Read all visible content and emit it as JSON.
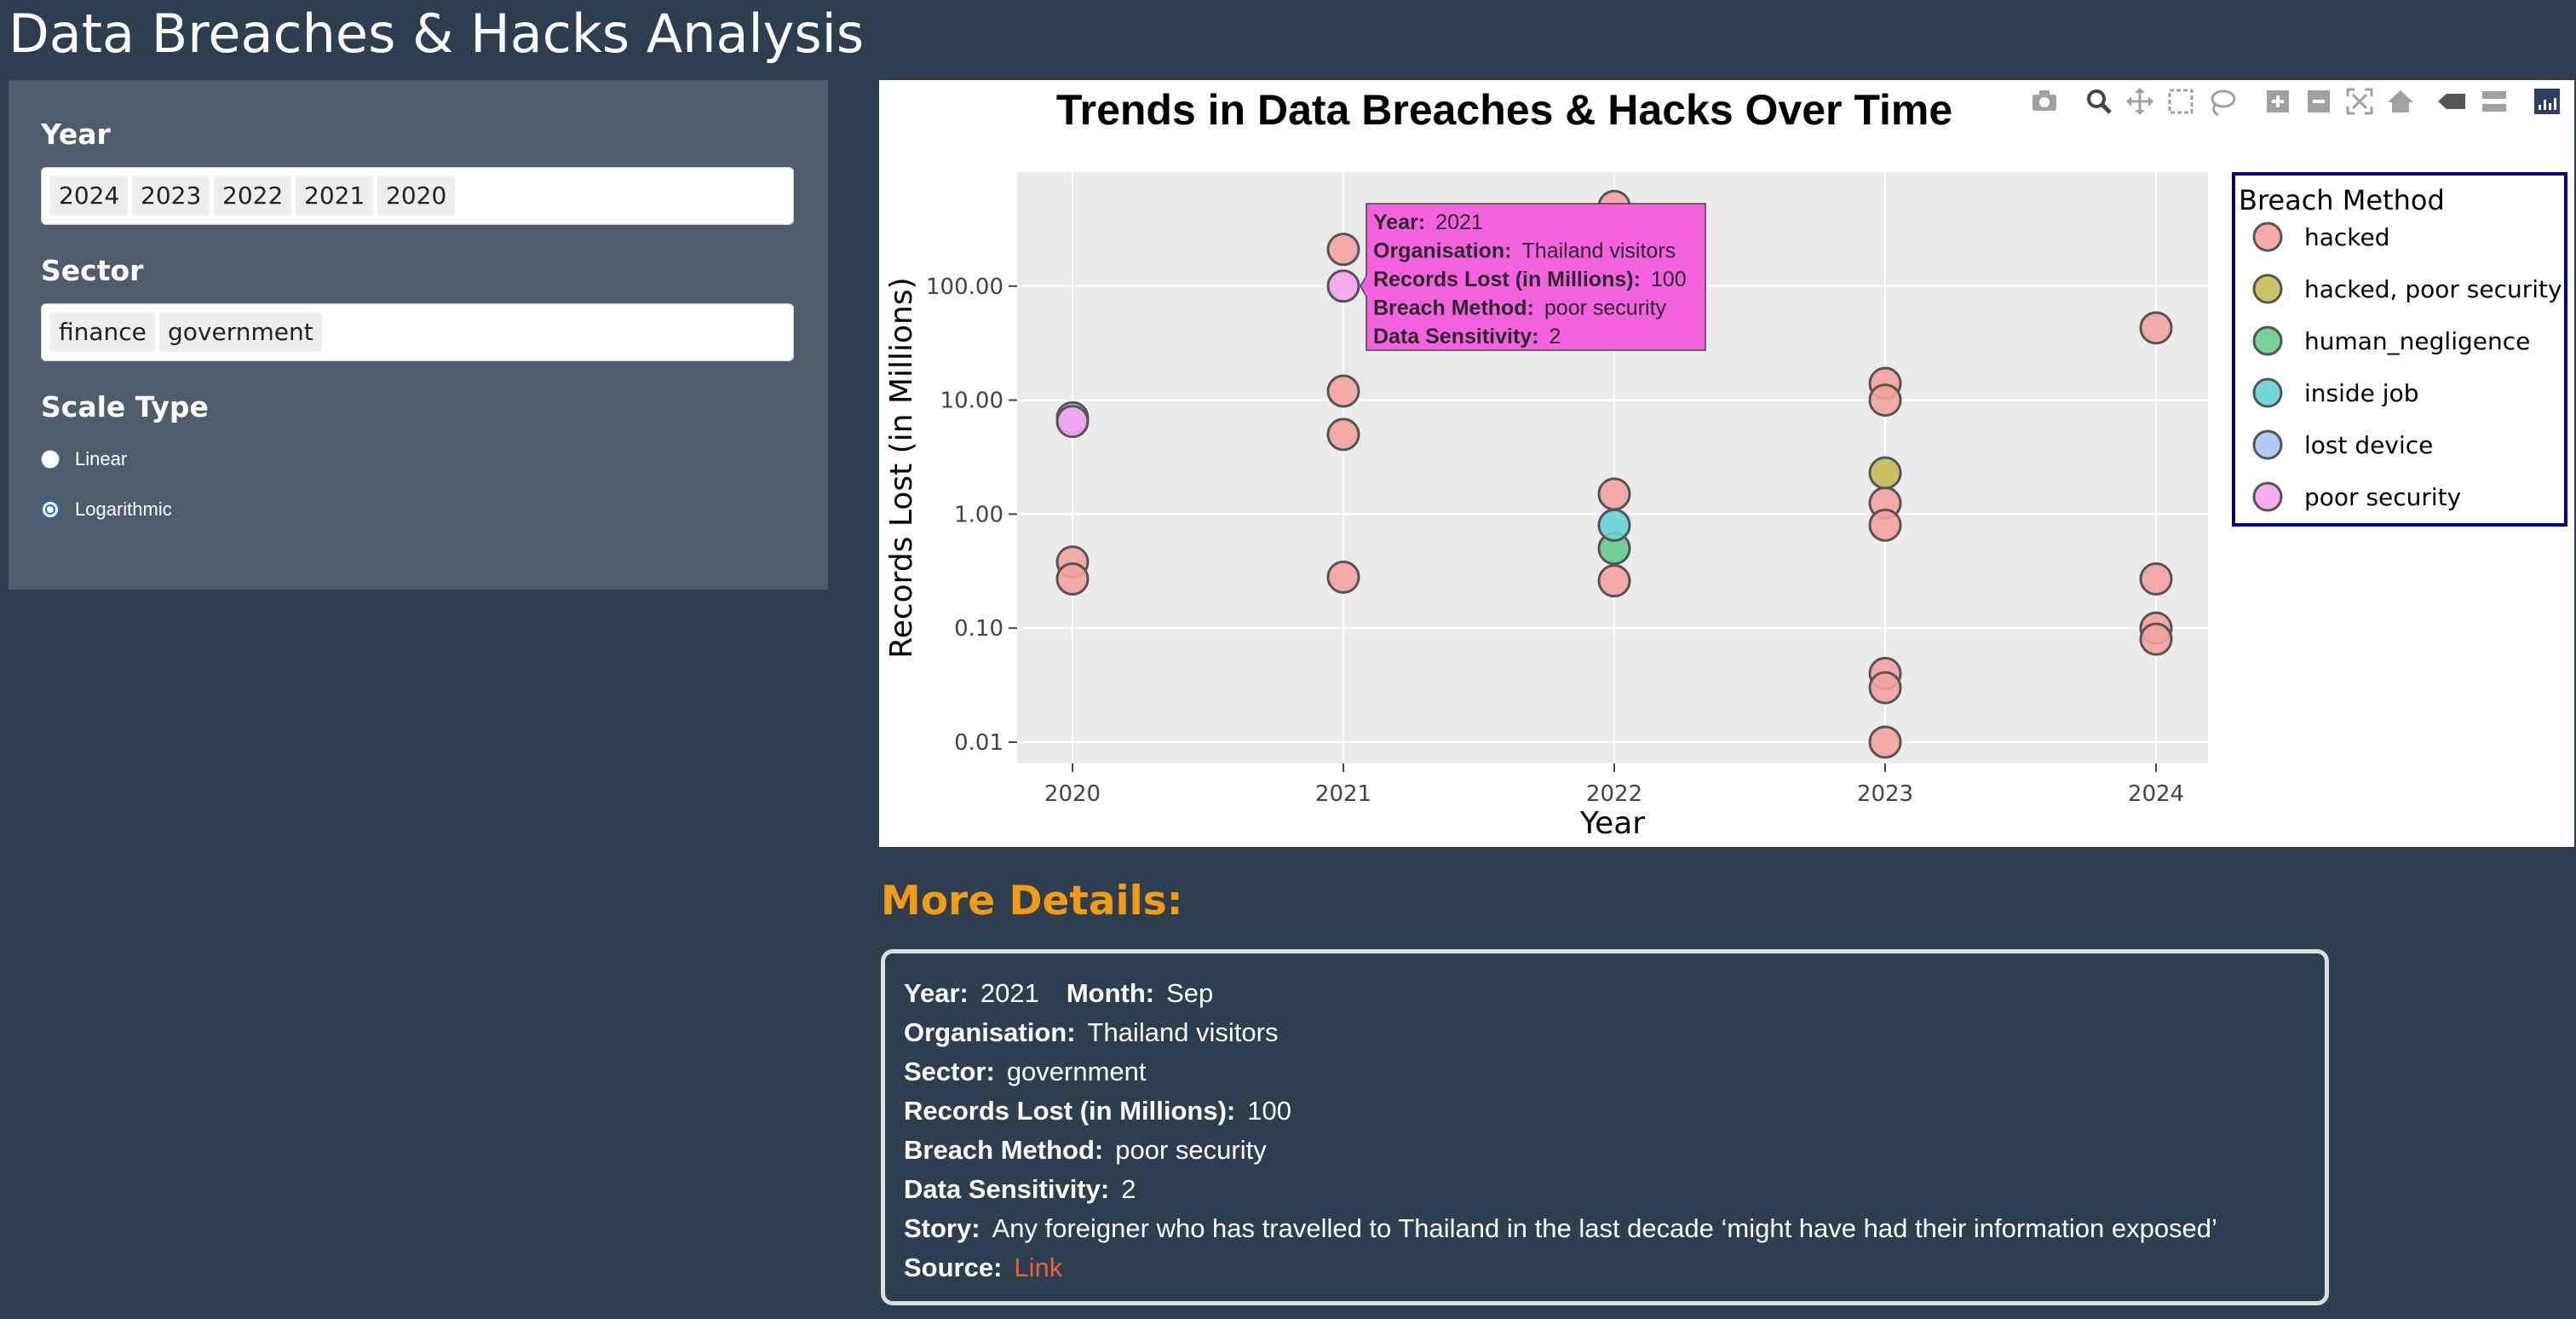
{
  "page": {
    "title": "Data Breaches & Hacks Analysis"
  },
  "filters": {
    "year": {
      "label": "Year",
      "selected": [
        "2024",
        "2023",
        "2022",
        "2021",
        "2020"
      ]
    },
    "sector": {
      "label": "Sector",
      "selected": [
        "finance",
        "government"
      ]
    },
    "scale": {
      "label": "Scale Type",
      "options": [
        {
          "label": "Linear",
          "checked": false
        },
        {
          "label": "Logarithmic",
          "checked": true
        }
      ]
    }
  },
  "modebar": {
    "icons": [
      "camera-icon",
      "zoom-icon",
      "pan-icon",
      "box-select-icon",
      "lasso-select-icon",
      "zoom-in-icon",
      "zoom-out-icon",
      "autoscale-icon",
      "reset-axes-icon",
      "hover-closest-icon",
      "hover-compare-icon",
      "plotly-logo-icon"
    ]
  },
  "chart_data": {
    "type": "scatter",
    "title": "Trends in Data Breaches & Hacks Over Time",
    "xlabel": "Year",
    "ylabel": "Records Lost (in Millions)",
    "x_categories": [
      "2020",
      "2021",
      "2022",
      "2023",
      "2024"
    ],
    "yscale": "log",
    "ylim": [
      0.0065,
      1000
    ],
    "y_ticks": [
      0.01,
      0.1,
      1,
      10,
      100
    ],
    "y_tick_labels": [
      "0.01",
      "0.10",
      "1.00",
      "10.00",
      "100.00"
    ],
    "grid": true,
    "plot_background": "#ebebeb",
    "legend": {
      "title": "Breach Method",
      "placement": "right",
      "border_color": "#000080",
      "entries": [
        {
          "name": "hacked",
          "color": "#f4a3a0"
        },
        {
          "name": "hacked, poor security",
          "color": "#c9bb55"
        },
        {
          "name": "human_negligence",
          "color": "#66cc8a"
        },
        {
          "name": "inside job",
          "color": "#66d4d4"
        },
        {
          "name": "lost device",
          "color": "#a9c4f5"
        },
        {
          "name": "poor security",
          "color": "#f4a3f0"
        }
      ]
    },
    "series": [
      {
        "name": "hacked",
        "points": [
          {
            "x": "2020",
            "y": 0.38
          },
          {
            "x": "2020",
            "y": 0.27
          },
          {
            "x": "2021",
            "y": 210
          },
          {
            "x": "2021",
            "y": 12
          },
          {
            "x": "2021",
            "y": 5
          },
          {
            "x": "2021",
            "y": 0.28
          },
          {
            "x": "2022",
            "y": 500
          },
          {
            "x": "2022",
            "y": 1.5
          },
          {
            "x": "2022",
            "y": 0.26
          },
          {
            "x": "2023",
            "y": 14
          },
          {
            "x": "2023",
            "y": 10
          },
          {
            "x": "2023",
            "y": 1.25
          },
          {
            "x": "2023",
            "y": 0.8
          },
          {
            "x": "2023",
            "y": 0.04
          },
          {
            "x": "2023",
            "y": 0.03
          },
          {
            "x": "2023",
            "y": 0.01
          },
          {
            "x": "2024",
            "y": 43
          },
          {
            "x": "2024",
            "y": 0.27
          },
          {
            "x": "2024",
            "y": 0.1
          },
          {
            "x": "2024",
            "y": 0.08
          }
        ]
      },
      {
        "name": "hacked, poor security",
        "points": [
          {
            "x": "2023",
            "y": 2.3
          }
        ]
      },
      {
        "name": "human_negligence",
        "points": [
          {
            "x": "2022",
            "y": 0.5
          }
        ]
      },
      {
        "name": "inside job",
        "points": [
          {
            "x": "2022",
            "y": 0.8
          }
        ]
      },
      {
        "name": "lost device",
        "points": [
          {
            "x": "2020",
            "y": 7
          }
        ]
      },
      {
        "name": "poor security",
        "points": [
          {
            "x": "2020",
            "y": 6.5
          },
          {
            "x": "2021",
            "y": 100
          }
        ]
      }
    ],
    "hover": {
      "anchor": {
        "series": "poor security",
        "x": "2021",
        "y": 100
      },
      "background": "#f462e0",
      "lines": [
        {
          "key": "Year:",
          "value": "2021"
        },
        {
          "key": "Organisation:",
          "value": "Thailand visitors"
        },
        {
          "key": "Records Lost (in Millions):",
          "value": "100"
        },
        {
          "key": "Breach Method:",
          "value": "poor security"
        },
        {
          "key": "Data Sensitivity:",
          "value": "2"
        }
      ]
    }
  },
  "details": {
    "heading": "More Details:",
    "year_label": "Year:",
    "year_value": "2021",
    "month_label": "Month:",
    "month_value": "Sep",
    "org_label": "Organisation:",
    "org_value": "Thailand visitors",
    "sector_label": "Sector:",
    "sector_value": "government",
    "records_label": "Records Lost (in Millions):",
    "records_value": "100",
    "method_label": "Breach Method:",
    "method_value": "poor security",
    "sensitivity_label": "Data Sensitivity:",
    "sensitivity_value": "2",
    "story_label": "Story:",
    "story_value": "Any foreigner who has travelled to Thailand in the last decade ‘might have had their information exposed’",
    "source_label": "Source:",
    "source_link_text": "Link"
  },
  "colors": {
    "background": "#2c3e50",
    "panel": "#4e5d6c",
    "heading_accent": "#f39c12",
    "link": "#e8643c"
  }
}
